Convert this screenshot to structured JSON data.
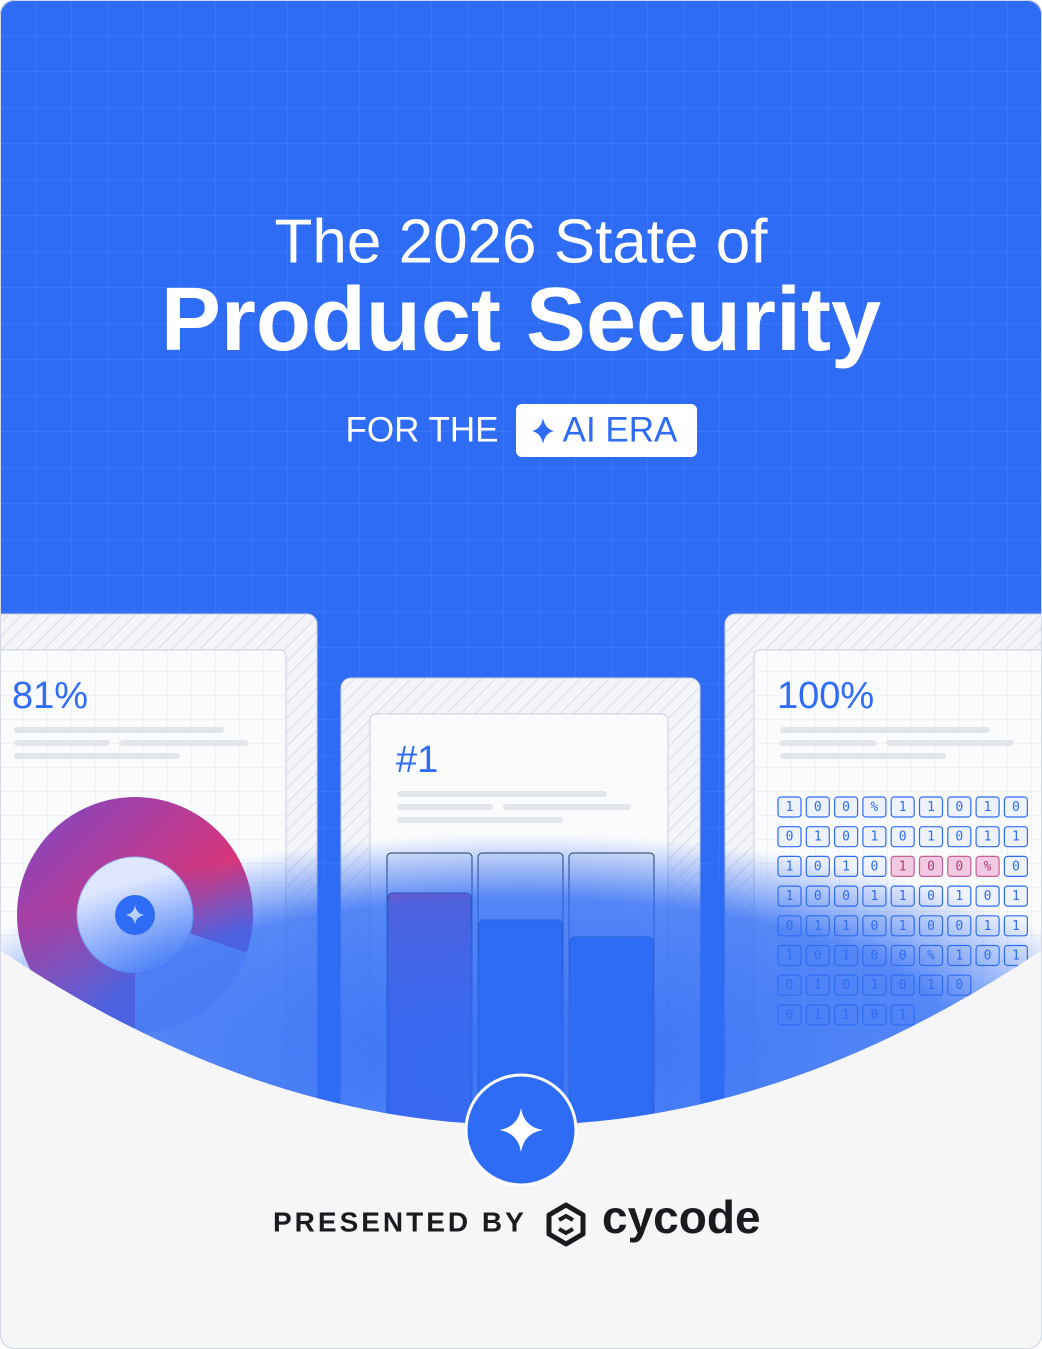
{
  "header": {
    "title_line1": "The 2026 State of",
    "title_line2": "Product Security",
    "tagline": "FOR THE",
    "badge": "AI ERA"
  },
  "cards": [
    {
      "stat": "81%"
    },
    {
      "stat": "#1"
    },
    {
      "stat": "100%",
      "grid": [
        [
          "1",
          "0",
          "0",
          "%",
          "1",
          "1",
          "0",
          "1",
          "0"
        ],
        [
          "0",
          "1",
          "0",
          "1",
          "0",
          "1",
          "0",
          "1",
          "1"
        ],
        [
          "1",
          "0",
          "1",
          "0",
          "1",
          "0",
          "0",
          "%",
          "0"
        ],
        [
          "1",
          "0",
          "0",
          "1",
          "1",
          "0",
          "1",
          "0",
          "1"
        ],
        [
          "0",
          "1",
          "1",
          "0",
          "1",
          "0",
          "0",
          "1",
          "1"
        ],
        [
          "1",
          "0",
          "1",
          "0",
          "0",
          "%",
          "1",
          "0",
          "1"
        ],
        [
          "0",
          "1",
          "0",
          "1",
          "0",
          "1",
          "0"
        ],
        [
          "0",
          "1",
          "1",
          "0",
          "1"
        ]
      ]
    }
  ],
  "footer": {
    "presented_by": "PRESENTED BY",
    "brand": "cycode"
  }
}
